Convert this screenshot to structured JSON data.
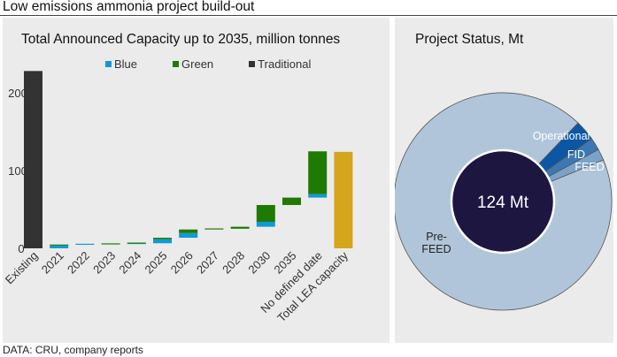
{
  "page": {
    "title": "Low emissions ammonia project build-out",
    "source": "DATA: CRU, company reports"
  },
  "colors": {
    "blue": "#0f9ad7",
    "green": "#1e7a00",
    "traditional": "#333333",
    "total": "#d5a51c",
    "pre_feed": "#b1c5da",
    "feed": "#7ba3c9",
    "fid": "#3b78b5",
    "operational": "#0b57a4",
    "center": "#1c1641"
  },
  "chart_data": [
    {
      "type": "bar",
      "subtype": "waterfall-stacked",
      "title": "Total Announced Capacity up to 2035, million tonnes",
      "xlabel": "",
      "ylabel": "",
      "ylim": [
        0,
        240
      ],
      "yticks": [
        0,
        100,
        200
      ],
      "grid": false,
      "legend": {
        "placement": "top",
        "entries": [
          "Blue",
          "Green",
          "Traditional"
        ]
      },
      "categories": [
        "Existing",
        "2021",
        "2022",
        "2023",
        "2024",
        "2025",
        "2026",
        "2027",
        "2028",
        "2030",
        "2035",
        "No defined date",
        "Total LEA capacity"
      ],
      "series": [
        {
          "name": "Traditional",
          "values": [
            228,
            0,
            0,
            0,
            0,
            0,
            0,
            0,
            0,
            0,
            0,
            0,
            0
          ]
        },
        {
          "name": "Blue",
          "values": [
            0,
            3.5,
            0.5,
            0,
            0.5,
            5.3,
            6.0,
            0,
            0,
            6.4,
            0,
            4.5,
            0
          ]
        },
        {
          "name": "Green",
          "values": [
            0,
            1.0,
            0,
            0.5,
            0.5,
            1.8,
            4.6,
            1.0,
            2.5,
            21.6,
            9.5,
            55.0,
            0
          ]
        },
        {
          "name": "Total LEA capacity",
          "values": [
            0,
            0,
            0,
            0,
            0,
            0,
            0,
            0,
            0,
            0,
            0,
            0,
            124
          ]
        }
      ],
      "waterfall_base": [
        0,
        0,
        4.5,
        5.0,
        5.5,
        6.5,
        13.6,
        24.2,
        25.2,
        27.7,
        55.7,
        65.2,
        0
      ]
    },
    {
      "type": "pie",
      "subtype": "donut",
      "title": "Project Status, Mt",
      "center_label": "124 Mt",
      "total": 124,
      "start_angle_deg": 43.7,
      "slices": [
        {
          "label": "Operational",
          "value": 3.8
        },
        {
          "label": "FID",
          "value": 2.3
        },
        {
          "label": "FEED",
          "value": 2.1
        },
        {
          "label": "Pre-FEED",
          "value": 115.8
        }
      ]
    }
  ]
}
